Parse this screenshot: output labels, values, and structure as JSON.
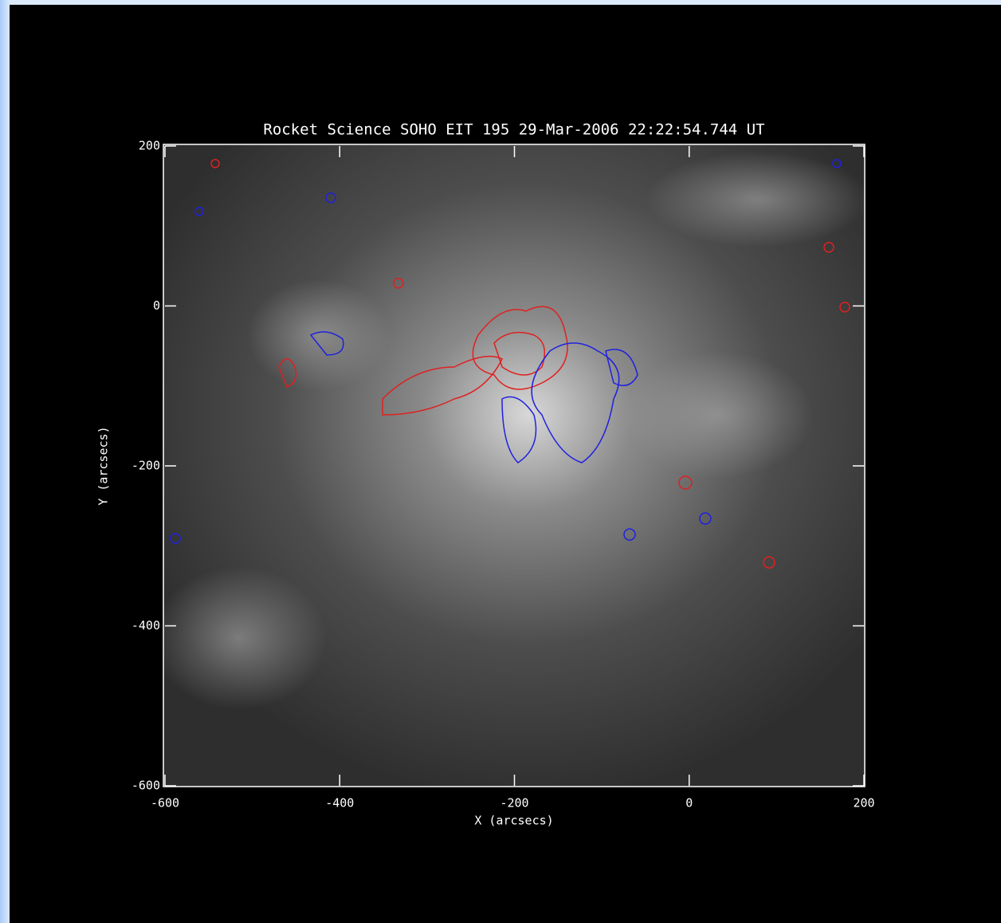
{
  "chart_data": {
    "type": "image",
    "title": "Rocket Science SOHO EIT 195 29-Mar-2006 22:22:54.744 UT",
    "x_label": "X (arcsecs)",
    "y_label": "Y (arcsecs)",
    "xlim": [
      -600,
      200
    ],
    "xticks": [
      -600,
      -400,
      -200,
      0,
      200
    ],
    "ylim": [
      -600,
      200
    ],
    "yticks": [
      -600,
      -400,
      -200,
      0,
      200
    ]
  }
}
